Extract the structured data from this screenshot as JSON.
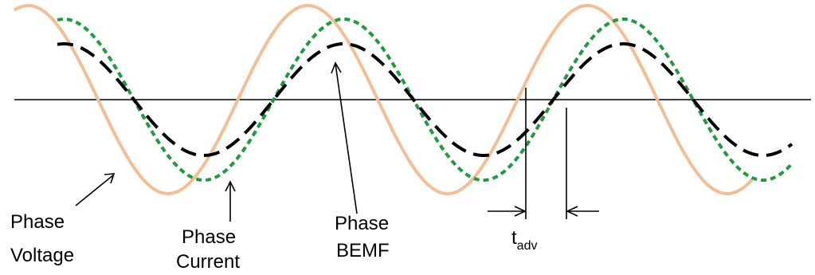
{
  "colors": {
    "voltage": "#f5bd92",
    "current": "#1a9e3c",
    "bemf": "#000000",
    "axis": "#000000",
    "text": "#000000"
  },
  "labels": {
    "voltage_line1": "Phase",
    "voltage_line2": "Voltage",
    "current_line1": "Phase",
    "current_line2": "Current",
    "bemf_line1": "Phase",
    "bemf_line2": "BEMF",
    "tadv_main": "t",
    "tadv_sub": "adv"
  },
  "waveforms": [
    {
      "id": "phase-voltage",
      "label_ref": "labels.voltage_line2",
      "style": "solid",
      "color_ref": "voltage",
      "phase_deg": -46
    },
    {
      "id": "phase-current",
      "label_ref": "labels.current_line2",
      "style": "dotted",
      "color_ref": "current",
      "phase_deg": 0
    },
    {
      "id": "phase-bemf",
      "label_ref": "labels.bemf_line2",
      "style": "dashed",
      "color_ref": "bemf",
      "phase_deg": 0
    }
  ]
}
